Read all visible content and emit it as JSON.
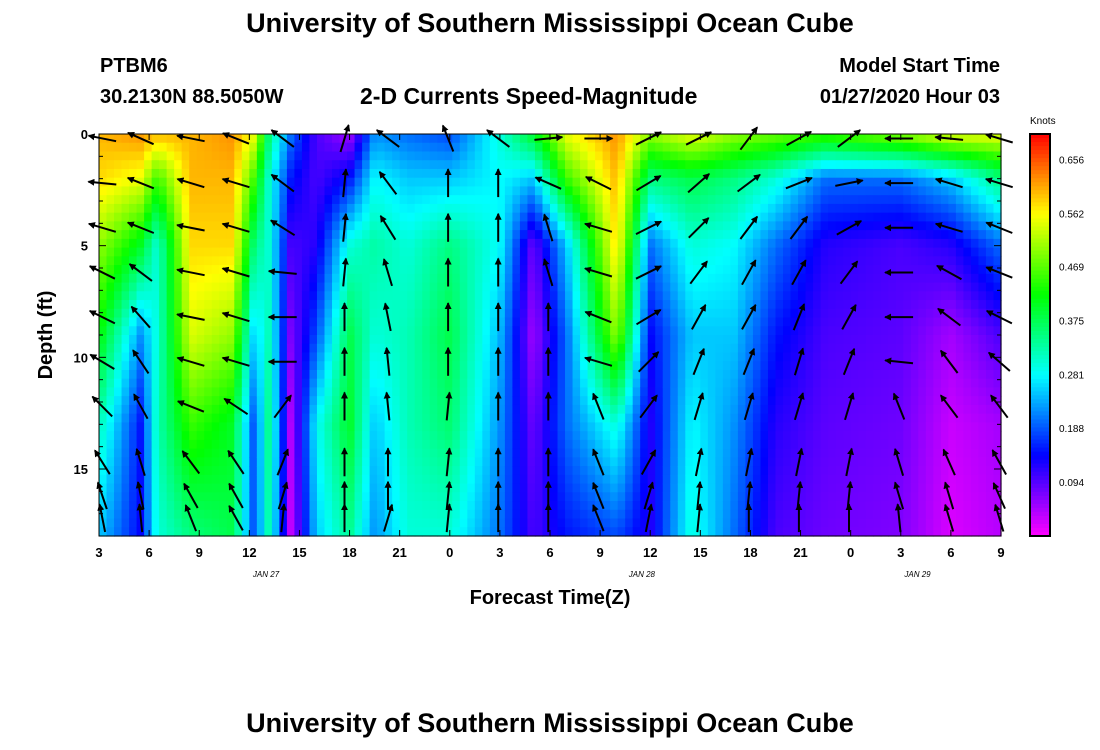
{
  "header": {
    "title": "University of Southern Mississippi Ocean Cube",
    "station_id": "PTBM6",
    "station_coords": "30.2130N 88.5050W",
    "subtitle": "2-D Currents Speed-Magnitude",
    "model_label": "Model Start Time",
    "model_datetime": "01/27/2020 Hour 03"
  },
  "footer": {
    "title": "University of Southern Mississippi Ocean Cube"
  },
  "chart_data": {
    "type": "heatmap",
    "title": "2-D Currents Speed-Magnitude",
    "xlabel": "Forecast Time(Z)",
    "ylabel": "Depth (ft)",
    "x_tick_labels": [
      "3",
      "6",
      "9",
      "12",
      "15",
      "18",
      "21",
      "0",
      "3",
      "6",
      "9",
      "12",
      "15",
      "18",
      "21",
      "0",
      "3",
      "6",
      "9"
    ],
    "x_range_hours": [
      0,
      54
    ],
    "date_labels": [
      {
        "label": "JAN 27",
        "hour": 10
      },
      {
        "label": "JAN 28",
        "hour": 32.5
      },
      {
        "label": "JAN 29",
        "hour": 49
      }
    ],
    "y_ticks": [
      0,
      5,
      10,
      15
    ],
    "ylim": [
      0,
      18
    ],
    "colorbar": {
      "title": "Knots",
      "ticks": [
        "0.656",
        "0.562",
        "0.469",
        "0.375",
        "0.281",
        "0.188",
        "0.094"
      ],
      "range": [
        0,
        0.7
      ]
    },
    "speed_profiles": [
      {
        "hour": 0,
        "profile": [
          0.6,
          0.58,
          0.5,
          0.42,
          0.32,
          0.25
        ]
      },
      {
        "hour": 2.5,
        "profile": [
          0.62,
          0.55,
          0.4,
          0.22,
          0.15,
          0.14
        ]
      },
      {
        "hour": 3.5,
        "profile": [
          0.6,
          0.45,
          0.3,
          0.3,
          0.32,
          0.3
        ]
      },
      {
        "hour": 5.5,
        "profile": [
          0.6,
          0.6,
          0.58,
          0.54,
          0.45,
          0.35
        ]
      },
      {
        "hour": 8,
        "profile": [
          0.62,
          0.6,
          0.58,
          0.5,
          0.4,
          0.38
        ]
      },
      {
        "hour": 9.3,
        "profile": [
          0.55,
          0.45,
          0.35,
          0.25,
          0.18,
          0.18
        ]
      },
      {
        "hour": 10.2,
        "profile": [
          0.35,
          0.3,
          0.3,
          0.32,
          0.35,
          0.33
        ]
      },
      {
        "hour": 11.5,
        "profile": [
          0.2,
          0.15,
          0.1,
          0.07,
          0.04,
          0.03
        ]
      },
      {
        "hour": 13,
        "profile": [
          0.1,
          0.1,
          0.12,
          0.18,
          0.28,
          0.25
        ]
      },
      {
        "hour": 15,
        "profile": [
          0.05,
          0.15,
          0.3,
          0.38,
          0.4,
          0.34
        ]
      },
      {
        "hour": 16.5,
        "profile": [
          0.22,
          0.28,
          0.33,
          0.3,
          0.25,
          0.22
        ]
      },
      {
        "hour": 18.5,
        "profile": [
          0.2,
          0.25,
          0.3,
          0.32,
          0.32,
          0.3
        ]
      },
      {
        "hour": 21,
        "profile": [
          0.18,
          0.25,
          0.35,
          0.38,
          0.36,
          0.3
        ]
      },
      {
        "hour": 24,
        "profile": [
          0.3,
          0.28,
          0.28,
          0.24,
          0.22,
          0.2
        ]
      },
      {
        "hour": 26,
        "profile": [
          0.4,
          0.25,
          0.08,
          0.05,
          0.08,
          0.1
        ]
      },
      {
        "hour": 28,
        "profile": [
          0.55,
          0.45,
          0.25,
          0.2,
          0.2,
          0.15
        ]
      },
      {
        "hour": 31,
        "profile": [
          0.62,
          0.6,
          0.58,
          0.5,
          0.3,
          0.18
        ]
      },
      {
        "hour": 33,
        "profile": [
          0.5,
          0.35,
          0.2,
          0.14,
          0.12,
          0.12
        ]
      },
      {
        "hour": 35.5,
        "profile": [
          0.55,
          0.38,
          0.3,
          0.25,
          0.28,
          0.3
        ]
      },
      {
        "hour": 38,
        "profile": [
          0.5,
          0.35,
          0.28,
          0.25,
          0.22,
          0.2
        ]
      },
      {
        "hour": 40.5,
        "profile": [
          0.48,
          0.3,
          0.2,
          0.15,
          0.12,
          0.1
        ]
      },
      {
        "hour": 43.5,
        "profile": [
          0.45,
          0.2,
          0.12,
          0.1,
          0.09,
          0.08
        ]
      },
      {
        "hour": 48,
        "profile": [
          0.5,
          0.2,
          0.1,
          0.09,
          0.08,
          0.07
        ]
      },
      {
        "hour": 51,
        "profile": [
          0.55,
          0.25,
          0.12,
          0.05,
          0.03,
          0.02
        ]
      },
      {
        "hour": 54,
        "profile": [
          0.55,
          0.35,
          0.2,
          0.1,
          0.05,
          0.04
        ]
      }
    ],
    "profile_depths_ft": [
      0,
      2,
      5,
      9,
      13,
      18
    ],
    "vector_columns": [
      {
        "hour": 0.2,
        "dirs": [
          [
            -1,
            0.2
          ],
          [
            -1,
            0.1
          ],
          [
            -1,
            0.3
          ],
          [
            -1,
            0.5
          ],
          [
            -1,
            0.5
          ],
          [
            -1,
            0.6
          ],
          [
            -0.7,
            0.7
          ],
          [
            -0.5,
            0.8
          ],
          [
            -0.3,
            0.9
          ],
          [
            -0.2,
            1
          ]
        ]
      },
      {
        "hour": 2.5,
        "dirs": [
          [
            -0.9,
            0.4
          ],
          [
            -1,
            0.4
          ],
          [
            -1,
            0.4
          ],
          [
            -0.8,
            0.6
          ],
          [
            -0.7,
            0.8
          ],
          [
            -0.6,
            0.9
          ],
          [
            -0.5,
            0.9
          ],
          [
            -0.3,
            1
          ],
          [
            -0.2,
            1
          ],
          [
            -0.1,
            1
          ]
        ]
      },
      {
        "hour": 5.5,
        "dirs": [
          [
            -1,
            0.2
          ],
          [
            -1,
            0.3
          ],
          [
            -1,
            0.2
          ],
          [
            -1,
            0.2
          ],
          [
            -1,
            0.2
          ],
          [
            -1,
            0.3
          ],
          [
            -1,
            0.4
          ],
          [
            -0.6,
            0.8
          ],
          [
            -0.5,
            0.9
          ],
          [
            -0.4,
            1
          ]
        ]
      },
      {
        "hour": 8.2,
        "dirs": [
          [
            -1,
            0.4
          ],
          [
            -1,
            0.3
          ],
          [
            -1,
            0.3
          ],
          [
            -1,
            0.3
          ],
          [
            -1,
            0.3
          ],
          [
            -1,
            0.3
          ],
          [
            -0.9,
            0.6
          ],
          [
            -0.6,
            0.9
          ],
          [
            -0.5,
            0.9
          ],
          [
            -0.5,
            0.9
          ]
        ]
      },
      {
        "hour": 11,
        "dirs": [
          [
            -0.8,
            0.6
          ],
          [
            -0.8,
            0.6
          ],
          [
            -0.8,
            0.5
          ],
          [
            -1,
            0.1
          ],
          [
            -1,
            0
          ],
          [
            -1,
            0
          ],
          [
            0.6,
            0.8
          ],
          [
            0.4,
            1
          ],
          [
            0.3,
            1
          ],
          [
            0.1,
            1
          ]
        ]
      },
      {
        "hour": 14.7,
        "dirs": [
          [
            0.3,
            1
          ],
          [
            0.1,
            1
          ],
          [
            0.1,
            1
          ],
          [
            0.1,
            1
          ],
          [
            0,
            1
          ],
          [
            0,
            1
          ],
          [
            0,
            1
          ],
          [
            0,
            1
          ],
          [
            0,
            1
          ],
          [
            0,
            1
          ]
        ]
      },
      {
        "hour": 17.3,
        "dirs": [
          [
            -0.8,
            0.6
          ],
          [
            -0.6,
            0.8
          ],
          [
            -0.5,
            0.8
          ],
          [
            -0.3,
            1
          ],
          [
            -0.2,
            1
          ],
          [
            -0.1,
            1
          ],
          [
            -0.1,
            1
          ],
          [
            0,
            1
          ],
          [
            0,
            1
          ],
          [
            0.3,
            1
          ]
        ]
      },
      {
        "hour": 20.9,
        "dirs": [
          [
            -0.4,
            1
          ],
          [
            0,
            1
          ],
          [
            0,
            1
          ],
          [
            0,
            1
          ],
          [
            0,
            1
          ],
          [
            0,
            1
          ],
          [
            0.1,
            1
          ],
          [
            0.1,
            1
          ],
          [
            0.1,
            1
          ],
          [
            0.1,
            1
          ]
        ]
      },
      {
        "hour": 23.9,
        "dirs": [
          [
            -0.8,
            0.6
          ],
          [
            0,
            1
          ],
          [
            0,
            1
          ],
          [
            0,
            1
          ],
          [
            0,
            1
          ],
          [
            0,
            1
          ],
          [
            0,
            1
          ],
          [
            0,
            1
          ],
          [
            0,
            1
          ],
          [
            0,
            1
          ]
        ]
      },
      {
        "hour": 26.9,
        "dirs": [
          [
            1,
            0.1
          ],
          [
            -0.9,
            0.4
          ],
          [
            -0.3,
            1
          ],
          [
            -0.3,
            1
          ],
          [
            0,
            1
          ],
          [
            0,
            1
          ],
          [
            0,
            1
          ],
          [
            0,
            1
          ],
          [
            0,
            1
          ],
          [
            0,
            1
          ]
        ]
      },
      {
        "hour": 29.9,
        "dirs": [
          [
            1,
            0
          ],
          [
            -1,
            0.5
          ],
          [
            -1,
            0.3
          ],
          [
            -1,
            0.3
          ],
          [
            -1,
            0.4
          ],
          [
            -1,
            0.3
          ],
          [
            -0.4,
            1
          ],
          [
            -0.4,
            1
          ],
          [
            -0.4,
            1
          ],
          [
            -0.4,
            1
          ]
        ]
      },
      {
        "hour": 32.9,
        "dirs": [
          [
            1,
            0.5
          ],
          [
            1,
            0.6
          ],
          [
            1,
            0.5
          ],
          [
            1,
            0.5
          ],
          [
            1,
            0.6
          ],
          [
            0.8,
            0.8
          ],
          [
            0.6,
            0.8
          ],
          [
            0.5,
            0.9
          ],
          [
            0.3,
            1
          ],
          [
            0.2,
            1
          ]
        ]
      },
      {
        "hour": 35.9,
        "dirs": [
          [
            1,
            0.5
          ],
          [
            0.8,
            0.7
          ],
          [
            0.8,
            0.8
          ],
          [
            0.6,
            0.8
          ],
          [
            0.5,
            0.9
          ],
          [
            0.4,
            1
          ],
          [
            0.3,
            1
          ],
          [
            0.2,
            1
          ],
          [
            0.1,
            1
          ],
          [
            0.1,
            1
          ]
        ]
      },
      {
        "hour": 38.9,
        "dirs": [
          [
            0.6,
            0.8
          ],
          [
            0.8,
            0.6
          ],
          [
            0.6,
            0.8
          ],
          [
            0.5,
            0.9
          ],
          [
            0.5,
            0.9
          ],
          [
            0.4,
            1
          ],
          [
            0.3,
            1
          ],
          [
            0.2,
            1
          ],
          [
            0.1,
            1
          ],
          [
            0,
            1
          ]
        ]
      },
      {
        "hour": 41.9,
        "dirs": [
          [
            0.9,
            0.5
          ],
          [
            1,
            0.4
          ],
          [
            0.6,
            0.8
          ],
          [
            0.5,
            0.9
          ],
          [
            0.4,
            1
          ],
          [
            0.3,
            1
          ],
          [
            0.3,
            1
          ],
          [
            0.2,
            1
          ],
          [
            0.1,
            1
          ],
          [
            0,
            1
          ]
        ]
      },
      {
        "hour": 44.9,
        "dirs": [
          [
            0.8,
            0.6
          ],
          [
            1,
            0.2
          ],
          [
            0.9,
            0.5
          ],
          [
            0.6,
            0.8
          ],
          [
            0.5,
            0.9
          ],
          [
            0.4,
            1
          ],
          [
            0.3,
            1
          ],
          [
            0.2,
            1
          ],
          [
            0.1,
            1
          ],
          [
            0,
            1
          ]
        ]
      },
      {
        "hour": 47.9,
        "dirs": [
          [
            -1,
            0
          ],
          [
            -1,
            0
          ],
          [
            -1,
            0
          ],
          [
            -1,
            0
          ],
          [
            -1,
            0
          ],
          [
            -1,
            0.1
          ],
          [
            -0.4,
            1
          ],
          [
            -0.3,
            1
          ],
          [
            -0.3,
            1
          ],
          [
            -0.1,
            1
          ]
        ]
      },
      {
        "hour": 50.9,
        "dirs": [
          [
            -1,
            0.1
          ],
          [
            -1,
            0.3
          ],
          [
            -1,
            0.3
          ],
          [
            -0.9,
            0.5
          ],
          [
            -0.8,
            0.6
          ],
          [
            -0.6,
            0.8
          ],
          [
            -0.6,
            0.8
          ],
          [
            -0.4,
            0.9
          ],
          [
            -0.3,
            1
          ],
          [
            -0.3,
            1
          ]
        ]
      },
      {
        "hour": 53.9,
        "dirs": [
          [
            -1,
            0.3
          ],
          [
            -1,
            0.3
          ],
          [
            -1,
            0.4
          ],
          [
            -1,
            0.4
          ],
          [
            -1,
            0.5
          ],
          [
            -0.8,
            0.7
          ],
          [
            -0.6,
            0.8
          ],
          [
            -0.5,
            0.9
          ],
          [
            -0.4,
            0.9
          ],
          [
            -0.3,
            1
          ]
        ]
      }
    ],
    "vector_depths_ft": [
      0.2,
      2.2,
      4.2,
      6.2,
      8.2,
      10.2,
      12.2,
      14.7,
      16.2,
      17.2
    ]
  }
}
